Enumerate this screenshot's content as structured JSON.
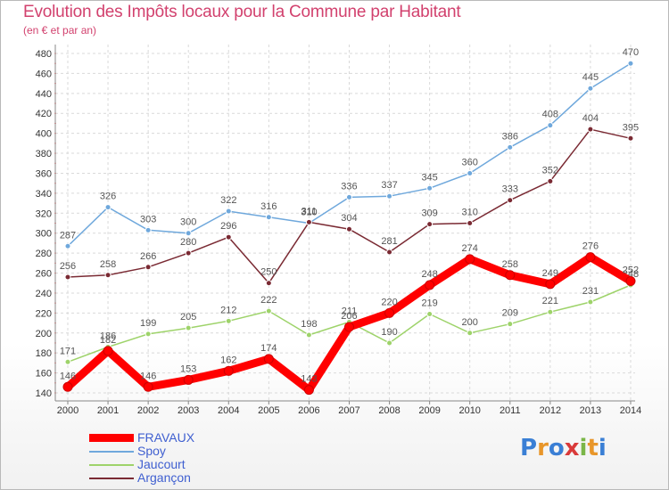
{
  "title": "Evolution des Impôts locaux pour la Commune par Habitant",
  "subtitle": "(en € et par an)",
  "logo": {
    "letters": [
      "P",
      "r",
      "o",
      "x",
      "i",
      "t",
      "i"
    ],
    "colors": [
      "#3a7fd5",
      "#e8962a",
      "#3a7fd5",
      "#d93a3a",
      "#7ab648",
      "#e8962a",
      "#3a7fd5"
    ]
  },
  "chart_data": {
    "type": "line",
    "title": "Evolution des Impôts locaux pour la Commune par Habitant",
    "ylabel": "(en € et par an)",
    "xlabel": "",
    "categories": [
      "2000",
      "2001",
      "2002",
      "2003",
      "2004",
      "2005",
      "2006",
      "2007",
      "2008",
      "2009",
      "2010",
      "2011",
      "2012",
      "2013",
      "2014"
    ],
    "yticks": [
      140,
      160,
      180,
      200,
      220,
      240,
      260,
      280,
      300,
      320,
      340,
      360,
      380,
      400,
      420,
      440,
      460,
      480
    ],
    "ylim": [
      130,
      490
    ],
    "grid": true,
    "legend_position": "bottom-left",
    "series": [
      {
        "name": "FRAVAUX",
        "color": "#ff0000",
        "width": "thick",
        "labels": [
          "146",
          "182",
          "146",
          "153",
          "162",
          "174",
          "143",
          "206",
          "220",
          "248",
          "274",
          "258",
          "249",
          "276",
          "252"
        ],
        "values": [
          146,
          182,
          146,
          153,
          162,
          174,
          143,
          206,
          220,
          248,
          274,
          258,
          249,
          276,
          252
        ]
      },
      {
        "name": "Spoy",
        "color": "#6fa8dc",
        "width": "thin",
        "labels": [
          "287",
          "326",
          "303",
          "300",
          "322",
          "316",
          "310",
          "336",
          "337",
          "345",
          "360",
          "386",
          "408",
          "445",
          "470"
        ],
        "values": [
          287,
          326,
          303,
          300,
          322,
          316,
          310,
          336,
          337,
          345,
          360,
          386,
          408,
          445,
          470
        ]
      },
      {
        "name": "Jaucourt",
        "color": "#9ed36a",
        "width": "thin",
        "labels": [
          "171",
          "186",
          "199",
          "205",
          "212",
          "222",
          "198",
          "211",
          "190",
          "219",
          "200",
          "209",
          "221",
          "231",
          "248"
        ],
        "values": [
          171,
          186,
          199,
          205,
          212,
          222,
          198,
          211,
          190,
          219,
          200,
          209,
          221,
          231,
          248
        ]
      },
      {
        "name": "Argançon",
        "color": "#7a2a33",
        "width": "thin",
        "labels": [
          "256",
          "258",
          "266",
          "280",
          "296",
          "250",
          "311",
          "304",
          "281",
          "309",
          "310",
          "333",
          "352",
          "404",
          "395"
        ],
        "values": [
          256,
          258,
          266,
          280,
          296,
          250,
          311,
          304,
          281,
          309,
          310,
          333,
          352,
          404,
          395
        ]
      }
    ]
  }
}
